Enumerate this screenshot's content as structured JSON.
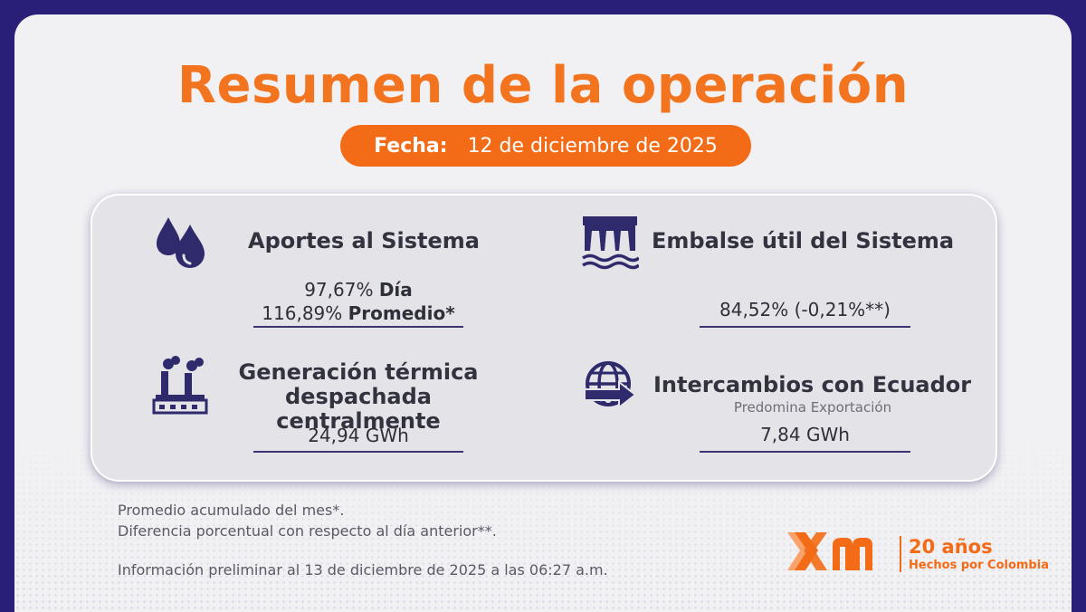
{
  "title": "Resumen de la operación",
  "date": {
    "label": "Fecha:",
    "value": "12 de diciembre de 2025"
  },
  "cards": {
    "aportes": {
      "title": "Aportes al Sistema",
      "line1_value": "97,67%",
      "line1_label": "Día",
      "line2_value": "116,89%",
      "line2_label": "Promedio*",
      "icon": "water-drops-icon"
    },
    "embalse": {
      "title": "Embalse útil del Sistema",
      "value": "84,52% (-0,21%**)",
      "icon": "dam-icon"
    },
    "termica": {
      "title_line1": "Generación térmica",
      "title_line2": "despachada centralmente",
      "value": "24,94 GWh",
      "icon": "factory-icon"
    },
    "ecuador": {
      "title": "Intercambios con Ecuador",
      "subtitle": "Predomina Exportación",
      "value": "7,84 GWh",
      "icon": "globe-exchange-icon"
    }
  },
  "notes": {
    "note1": "Promedio acumulado del mes*.",
    "note2": "Diferencia porcentual con respecto al día anterior**.",
    "note3": "Información preliminar al 13 de diciembre de 2025 a las 06:27 a.m."
  },
  "brand": {
    "logo": "xm",
    "tagline1": "20 años",
    "tagline2": "Hechos por Colombia"
  },
  "colors": {
    "accent": "#f36b16",
    "navy": "#2a1f78",
    "icon": "#2e2a6b"
  }
}
